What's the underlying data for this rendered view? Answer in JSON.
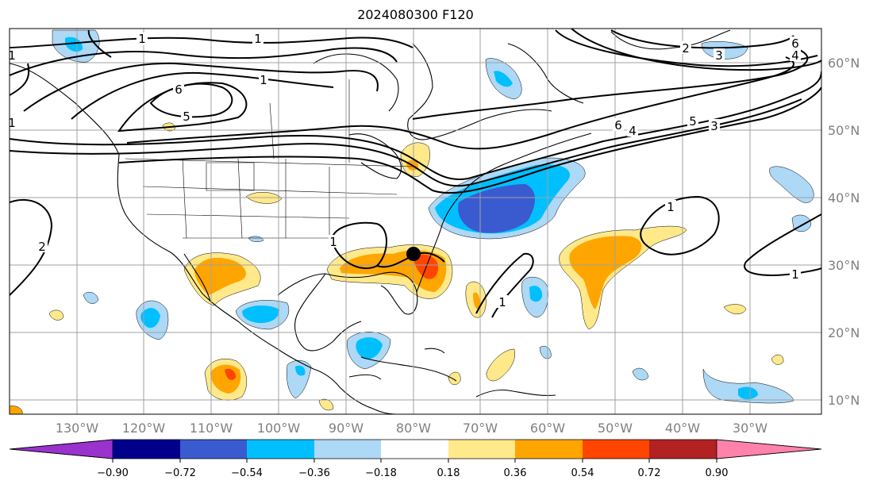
{
  "title": "2024080300 F120",
  "lon_labels": [
    "130°W",
    "120°W",
    "110°W",
    "100°W",
    "90°W",
    "80°W",
    "70°W",
    "60°W",
    "50°W",
    "40°W",
    "30°W"
  ],
  "lat_labels": [
    "60°N",
    "50°N",
    "40°N",
    "30°N",
    "20°N",
    "10°N"
  ],
  "colorbar": {
    "ticks": [
      "−0.90",
      "−0.72",
      "−0.54",
      "−0.36",
      "−0.18",
      "0.18",
      "0.36",
      "0.54",
      "0.72",
      "0.90"
    ],
    "colors": [
      "#9a32cd",
      "#00008b",
      "#3a5bd0",
      "#00bfff",
      "#add8f6",
      "#ffffff",
      "#ffe98a",
      "#ffa500",
      "#ff4500",
      "#b22222",
      "#ff82ab"
    ]
  },
  "contour_labels": [
    "1",
    "1",
    "1",
    "1",
    "5",
    "6",
    "2",
    "2",
    "3",
    "6",
    "4",
    "6",
    "4",
    "5",
    "3",
    "1",
    "1",
    "1",
    "1",
    "1"
  ],
  "marker": "storm-center-point"
}
